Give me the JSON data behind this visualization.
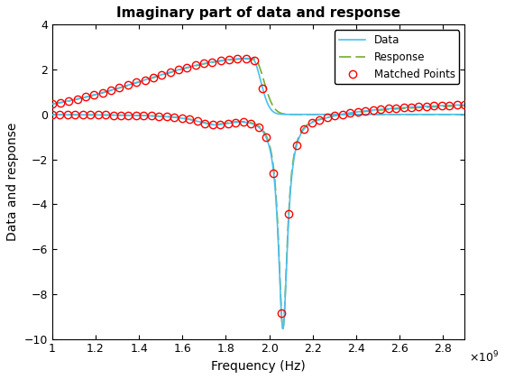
{
  "title": "Imaginary part of data and response",
  "xlabel": "Frequency (Hz)",
  "ylabel": "Data and response",
  "xlim": [
    1000000000.0,
    2900000000.0
  ],
  "ylim": [
    -10,
    4
  ],
  "yticks": [
    -10,
    -8,
    -6,
    -4,
    -2,
    0,
    2,
    4
  ],
  "xticks": [
    1000000000.0,
    1200000000.0,
    1400000000.0,
    1600000000.0,
    1800000000.0,
    2000000000.0,
    2200000000.0,
    2400000000.0,
    2600000000.0,
    2800000000.0
  ],
  "data_color": "#4DBEEE",
  "response_color": "#77AC30",
  "marker_color": "#FF0000",
  "legend_labels": [
    "Data",
    "Response",
    "Matched Points"
  ],
  "f_min": 1000000000.0,
  "f_max": 2900000000.0,
  "f0": 2063000000.0,
  "f0_upper": 1880000000.0,
  "n_pts_lower": 45,
  "n_pts_upper": 30
}
